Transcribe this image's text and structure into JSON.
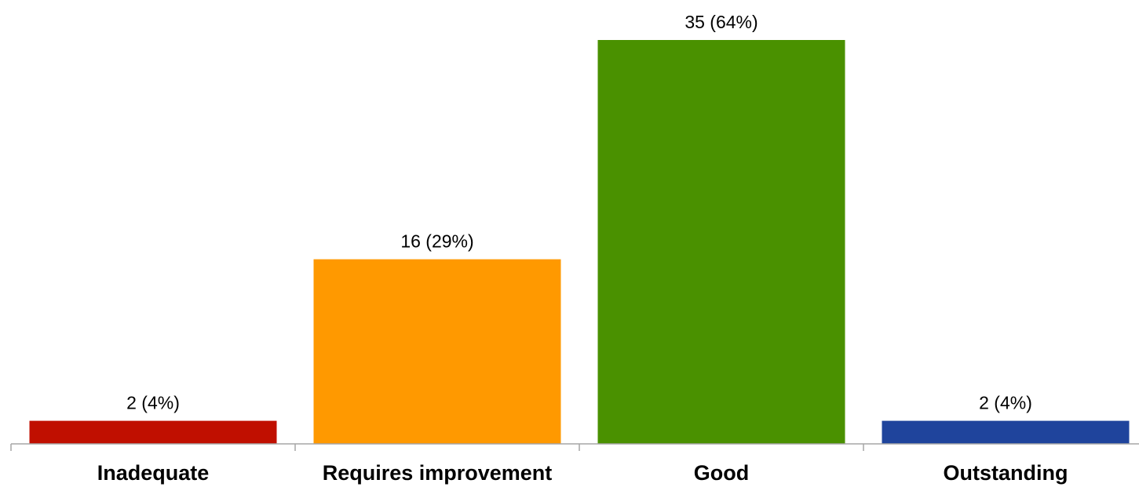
{
  "chart_data": {
    "type": "bar",
    "title": "",
    "xlabel": "",
    "ylabel": "",
    "ylim": [
      0,
      35
    ],
    "grid": false,
    "legend": "none",
    "categories": [
      "Inadequate",
      "Requires improvement",
      "Good",
      "Outstanding"
    ],
    "values": [
      2,
      16,
      35,
      2
    ],
    "data_labels": [
      "2 (4%)",
      "16 (29%)",
      "35 (64%)",
      "2 (4%)"
    ],
    "colors": [
      "#C00F00",
      "#FF9900",
      "#4A9100",
      "#1F449C"
    ],
    "axis_color": "#A6A6A6"
  }
}
